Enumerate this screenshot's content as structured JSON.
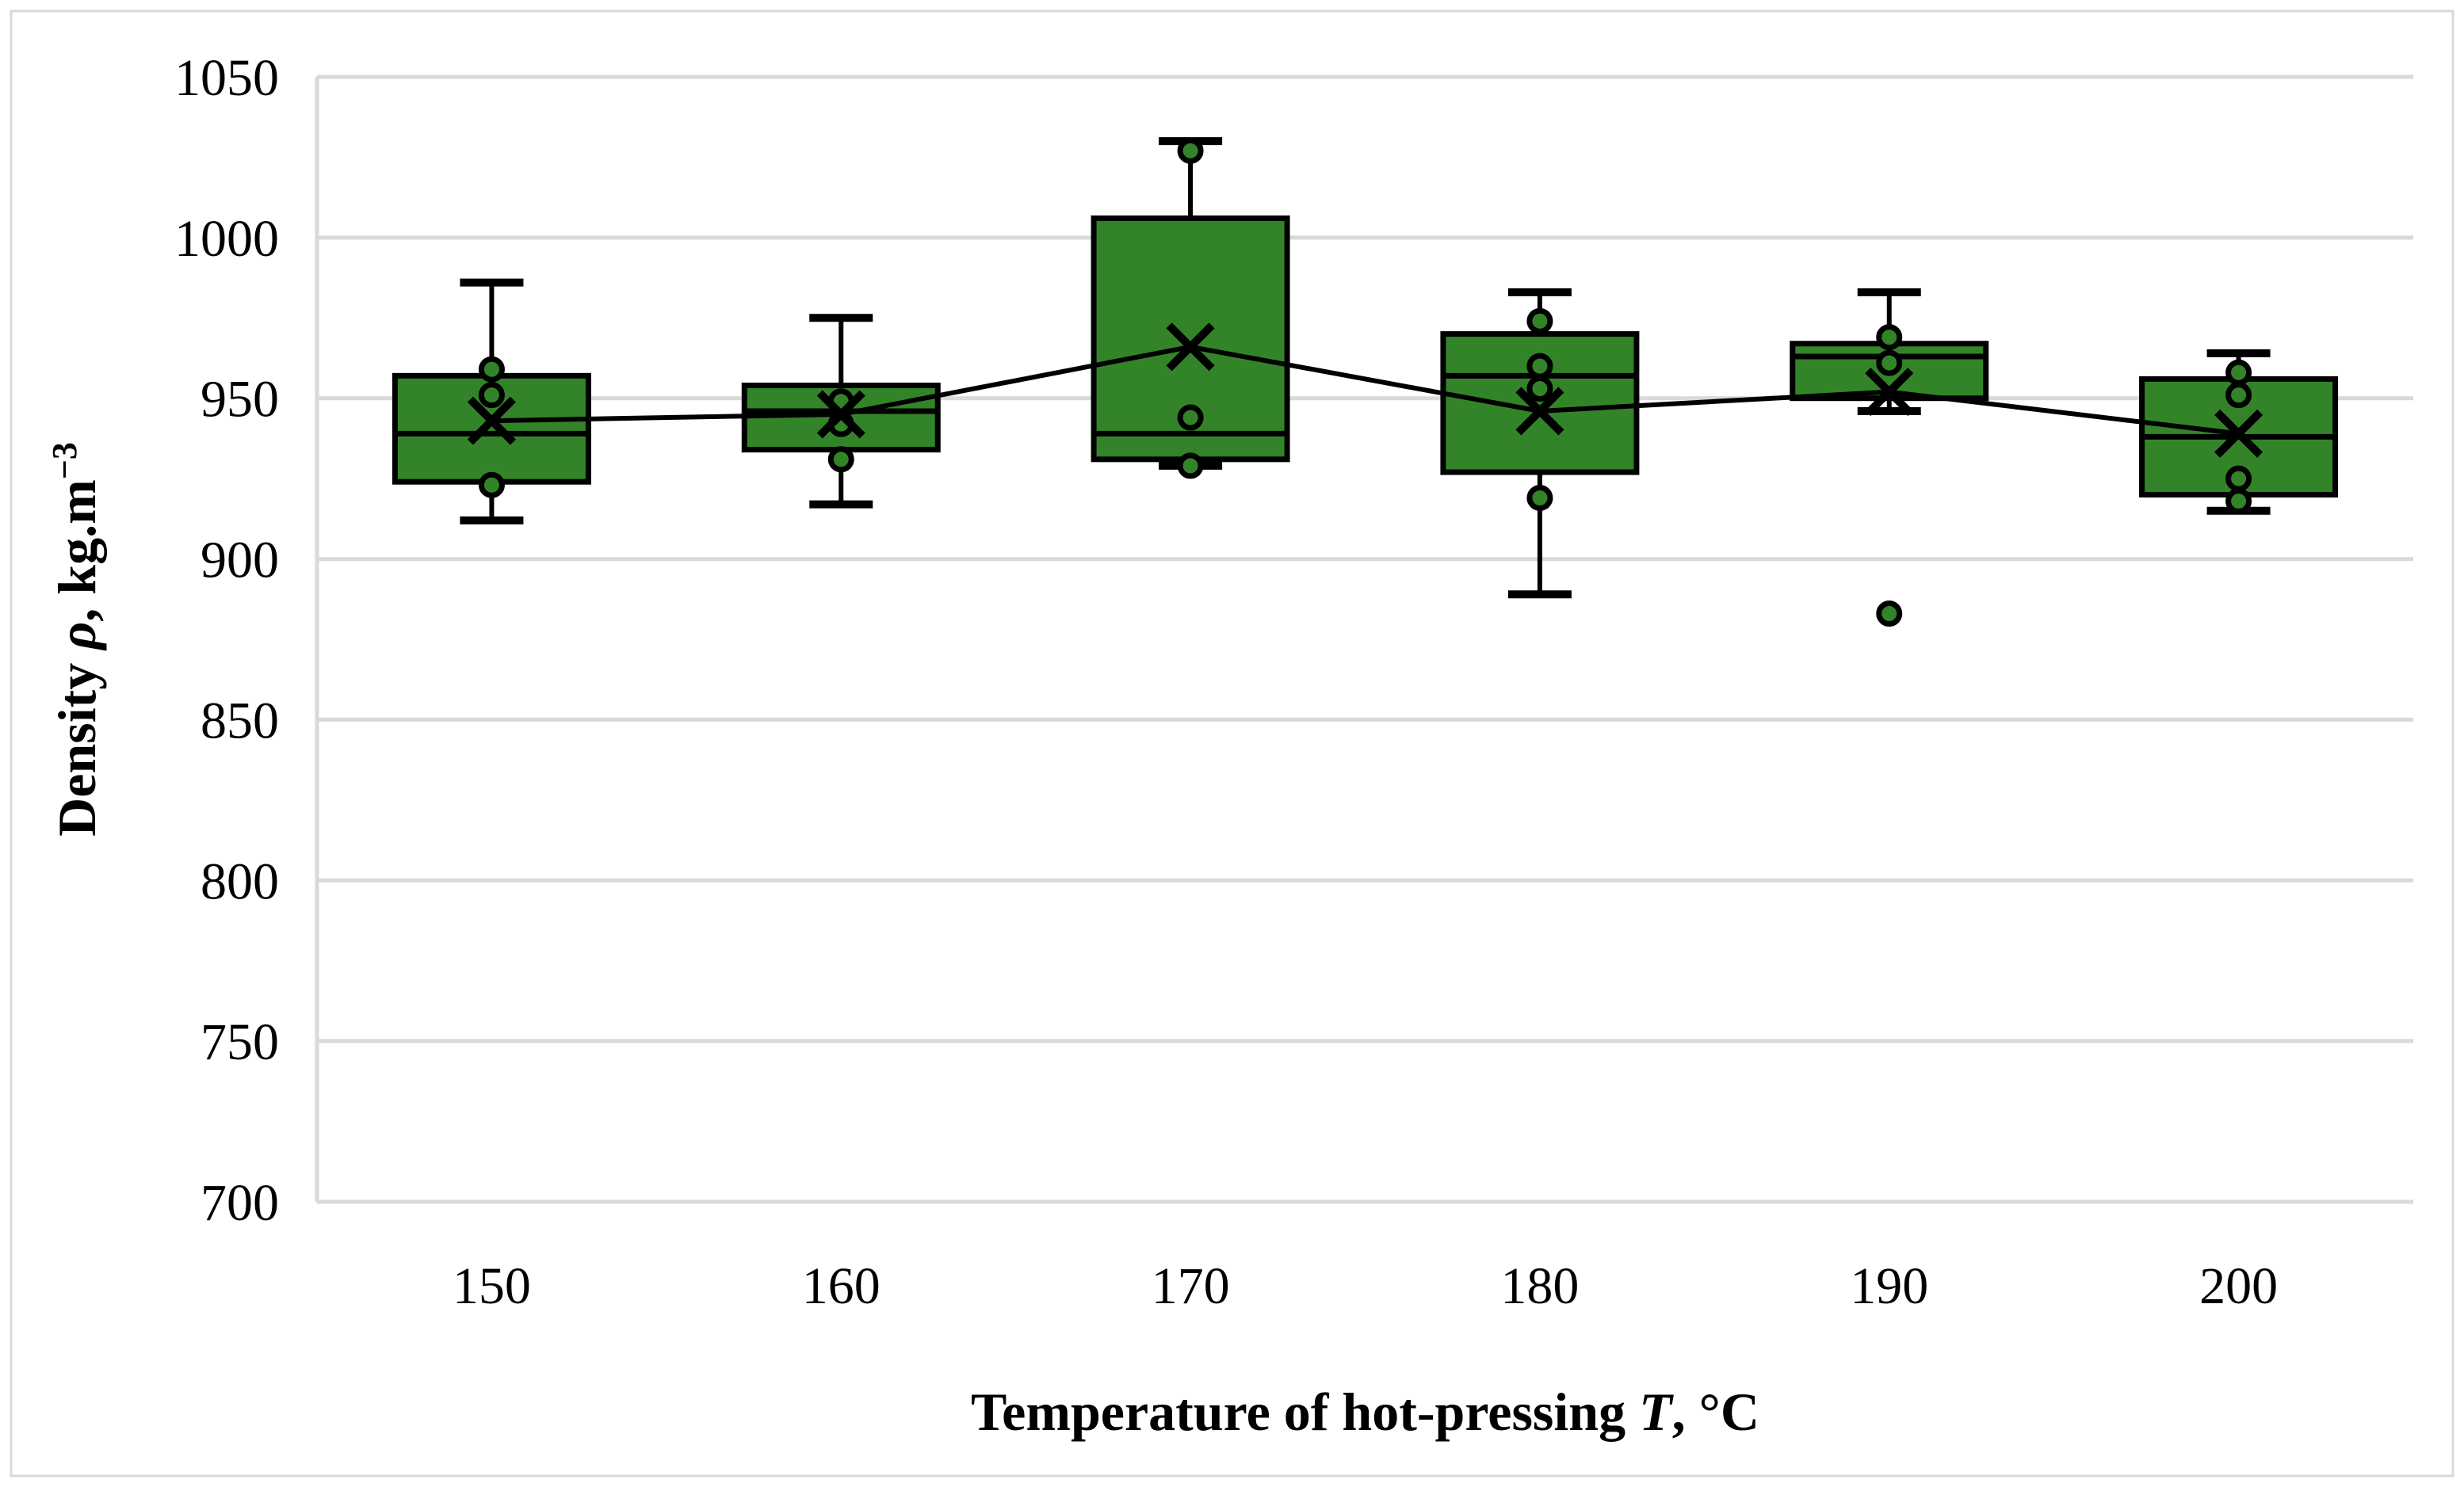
{
  "figure": {
    "background": "#FFFFFF",
    "border_color": "#D9D9D9"
  },
  "chart_data": {
    "type": "box",
    "title": "",
    "categories": [
      "150",
      "160",
      "170",
      "180",
      "190",
      "200"
    ],
    "xlabel": "Temperature of hot-pressing T, °C",
    "ylabel": "Density ρ, kg.m−3",
    "xlabel_segments": [
      {
        "text": "Temperature of hot-pressing ",
        "italic": false,
        "sup": false
      },
      {
        "text": "T",
        "italic": true,
        "sup": false
      },
      {
        "text": ", °C",
        "italic": false,
        "sup": false
      }
    ],
    "ylabel_segments": [
      {
        "text": "Density ",
        "italic": false,
        "sup": false
      },
      {
        "text": "ρ",
        "italic": true,
        "sup": false
      },
      {
        "text": ", kg.m",
        "italic": false,
        "sup": false
      },
      {
        "text": "−3",
        "italic": false,
        "sup": true
      }
    ],
    "y_axis": {
      "min": 700,
      "max": 1050,
      "step": 50,
      "tick_labels": [
        "700",
        "750",
        "800",
        "850",
        "900",
        "950",
        "1000",
        "1050"
      ]
    },
    "grid": true,
    "legend": false,
    "series": [
      {
        "category": "150",
        "whisker_low": 912,
        "q1": 924,
        "median": 939,
        "mean": 943,
        "q3": 957,
        "whisker_high": 986,
        "points": [
          959,
          951,
          923
        ]
      },
      {
        "category": "160",
        "whisker_low": 917,
        "q1": 934,
        "median": 946,
        "mean": 945,
        "q3": 954,
        "whisker_high": 975,
        "points": [
          949,
          942,
          931
        ]
      },
      {
        "category": "170",
        "whisker_low": 929,
        "q1": 931,
        "median": 939,
        "mean": 966,
        "q3": 1006,
        "whisker_high": 1030,
        "points": [
          1027,
          944,
          929
        ]
      },
      {
        "category": "180",
        "whisker_low": 889,
        "q1": 927,
        "median": 957,
        "mean": 946,
        "q3": 970,
        "whisker_high": 983,
        "points": [
          974,
          960,
          953,
          919
        ]
      },
      {
        "category": "190",
        "whisker_low": 946,
        "q1": 950,
        "median": 963,
        "mean": 952,
        "q3": 967,
        "whisker_high": 983,
        "points": [
          969,
          961,
          883
        ]
      },
      {
        "category": "200",
        "whisker_low": 915,
        "q1": 920,
        "median": 938,
        "mean": 939,
        "q3": 956,
        "whisker_high": 964,
        "points": [
          958,
          951,
          925,
          918
        ]
      }
    ],
    "mean_line": [
      943,
      945,
      966,
      946,
      952,
      939
    ],
    "colors": {
      "box_fill": "#338428",
      "line": "#000000",
      "grid": "#D9D9D9",
      "axis": "#D9D9D9",
      "text": "#000000"
    }
  }
}
